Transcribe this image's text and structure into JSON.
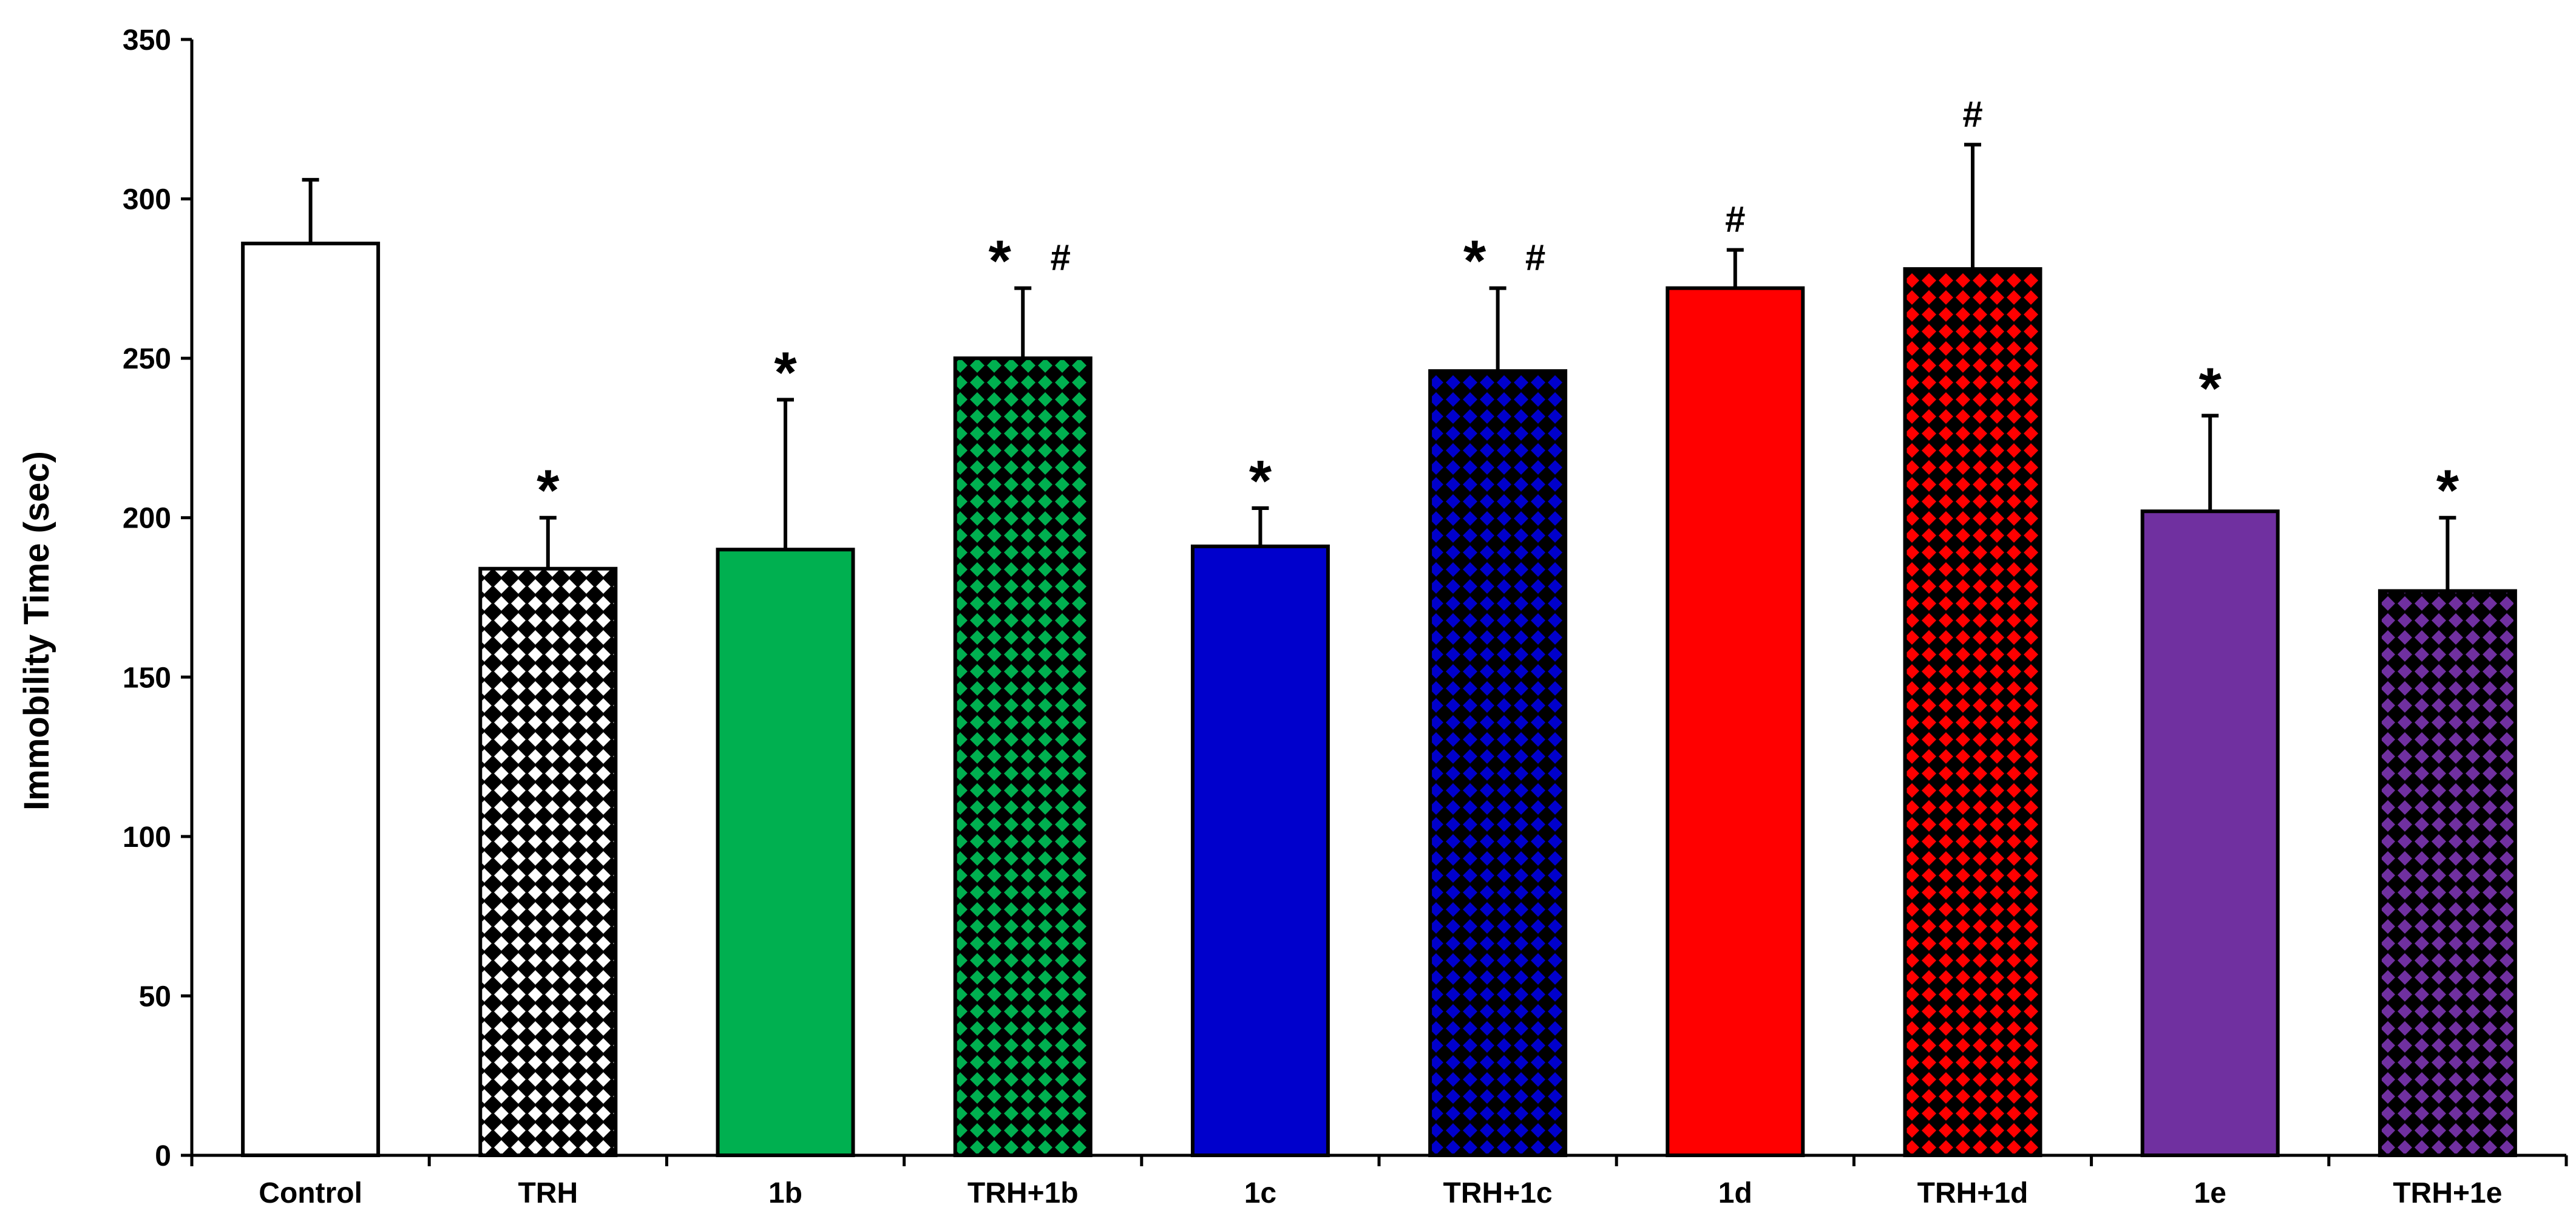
{
  "chart_data": {
    "type": "bar",
    "title": "",
    "xlabel": "",
    "ylabel": "Immobility Time (sec)",
    "ylim": [
      0,
      350
    ],
    "yticks": [
      0,
      50,
      100,
      150,
      200,
      250,
      300,
      350
    ],
    "grid": false,
    "legend": "none",
    "categories": [
      "Control",
      "TRH",
      "1b",
      "TRH+1b",
      "1c",
      "TRH+1c",
      "1d",
      "TRH+1d",
      "1e",
      "TRH+1e"
    ],
    "values": [
      286,
      184,
      190,
      250,
      191,
      246,
      272,
      278,
      202,
      177
    ],
    "errors": [
      20,
      16,
      47,
      22,
      12,
      26,
      12,
      39,
      30,
      23
    ],
    "colors": [
      "#FFFFFF",
      "#FFFFFF",
      "#00B050",
      "#00B050",
      "#0000CC",
      "#0000CC",
      "#FF0000",
      "#FF0000",
      "#7030A0",
      "#7030A0"
    ],
    "patterned": [
      false,
      true,
      false,
      true,
      false,
      true,
      false,
      true,
      false,
      true
    ],
    "annotations": [
      "",
      "*",
      "*",
      "* #",
      "*",
      "* #",
      "#",
      "#",
      "*",
      "*"
    ]
  }
}
